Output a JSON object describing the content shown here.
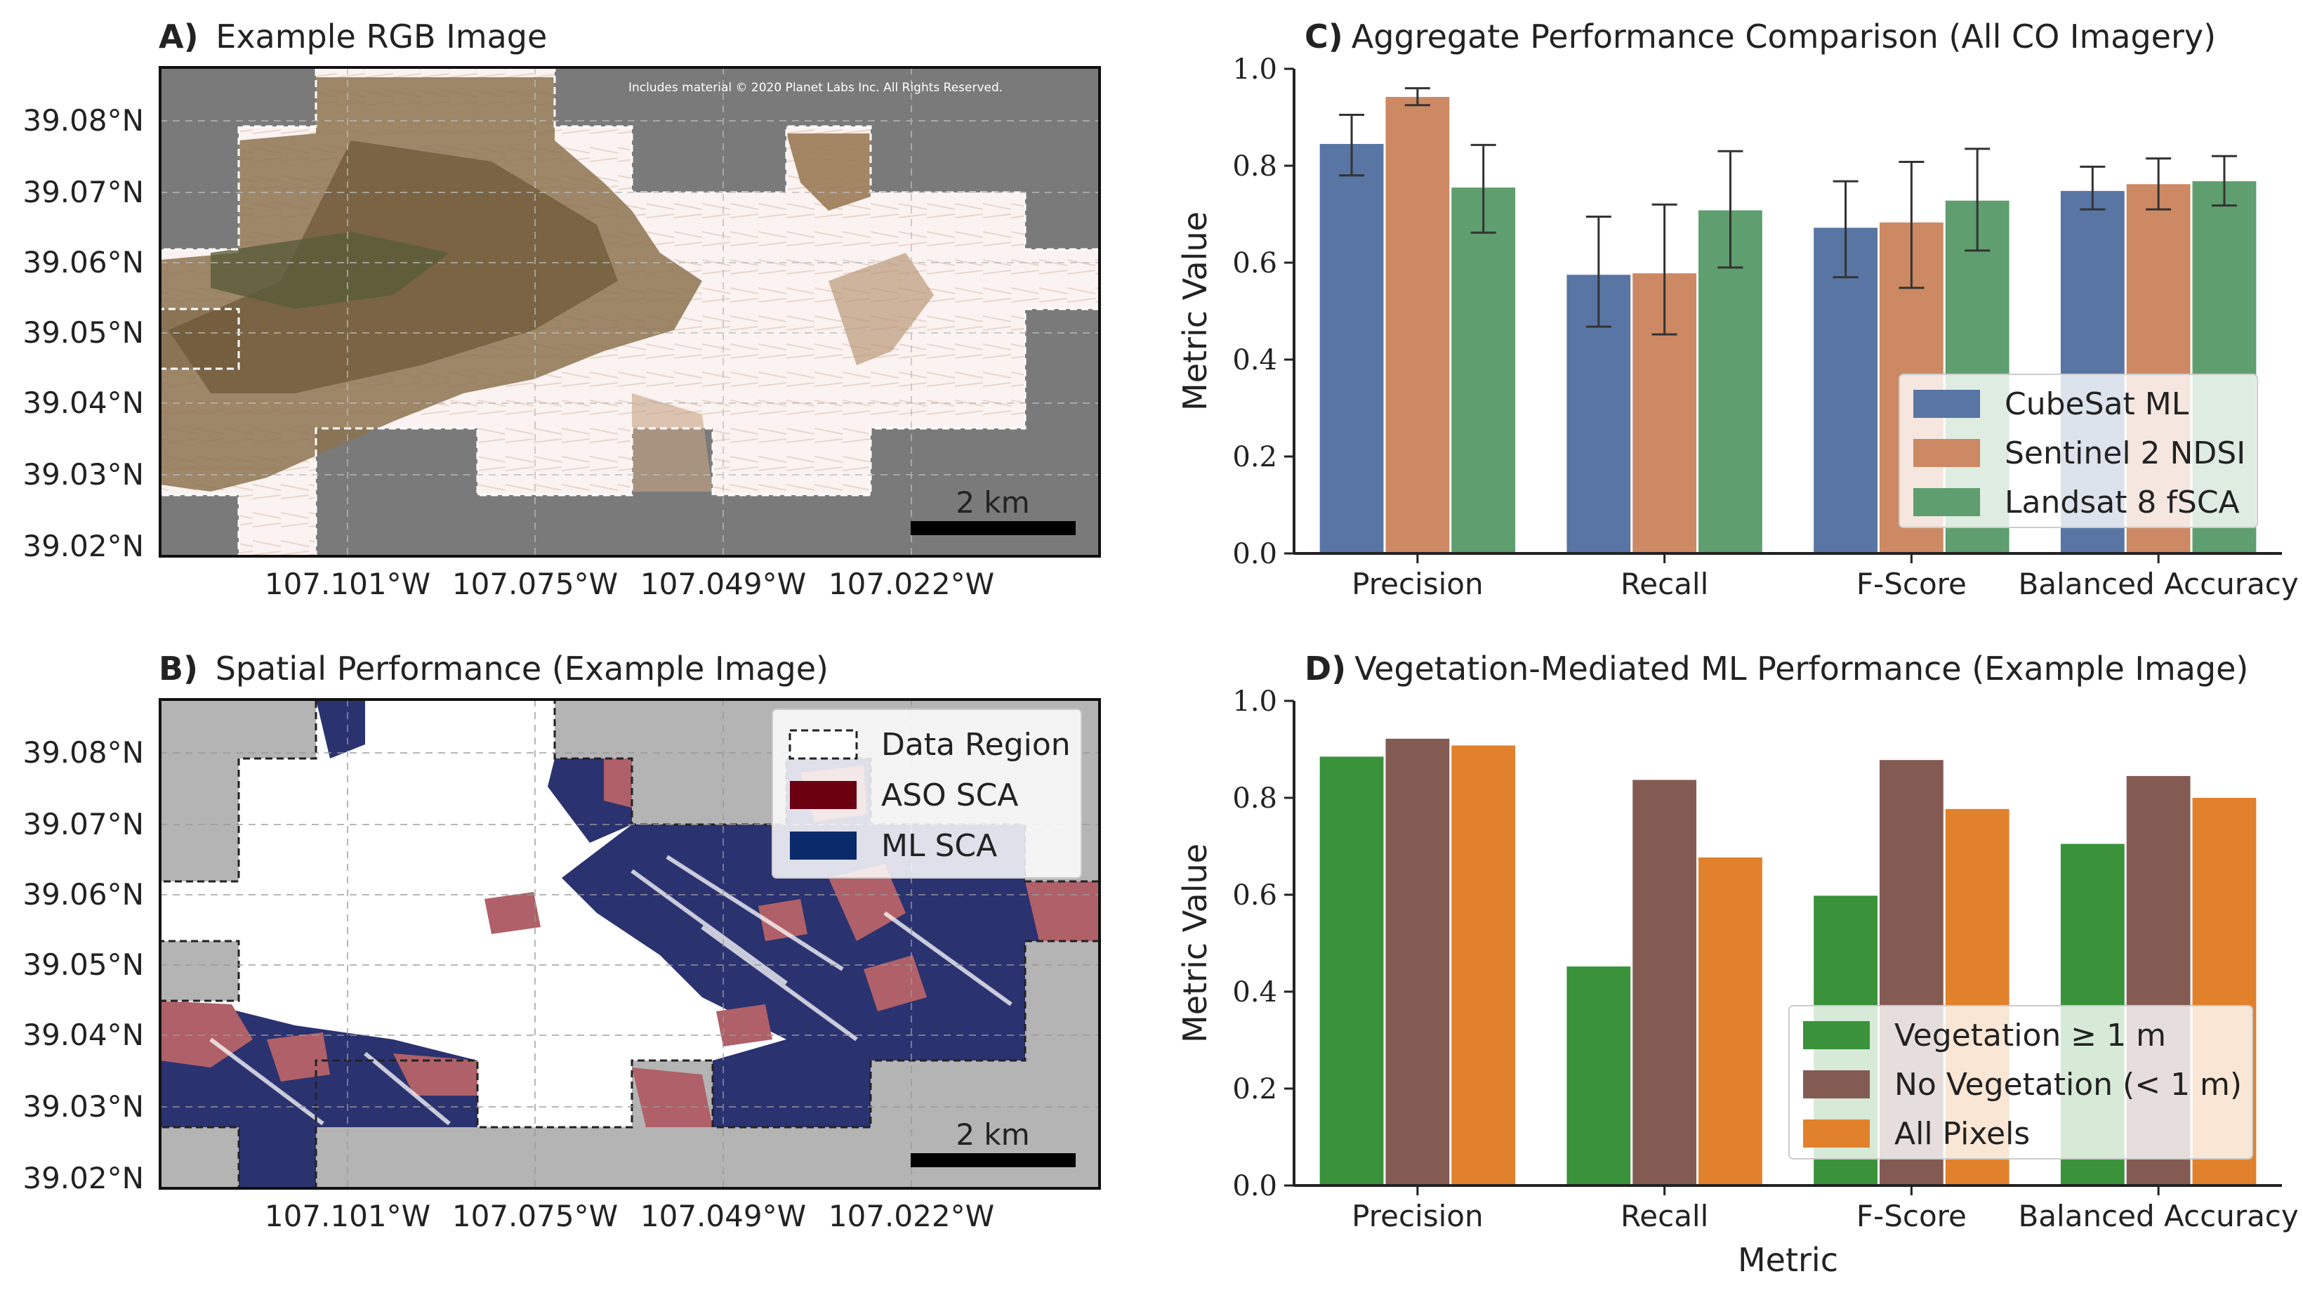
{
  "panel_a": {
    "label": "A)",
    "title": "Example RGB Image",
    "copyright": "Includes material © 2020 Planet Labs Inc. All Rights Reserved.",
    "scalebar": "2 km",
    "lat_ticks": [
      "39.08°N",
      "39.07°N",
      "39.06°N",
      "39.05°N",
      "39.04°N",
      "39.03°N",
      "39.02°N"
    ],
    "lon_ticks": [
      "107.101°W",
      "107.075°W",
      "107.049°W",
      "107.022°W"
    ]
  },
  "panel_b": {
    "label": "B)",
    "title": "Spatial Performance (Example Image)",
    "scalebar": "2 km",
    "legend": [
      "Data Region",
      "ASO SCA",
      "ML SCA"
    ],
    "colors": {
      "aso": "#6b0010",
      "ml": "#0a2a6a",
      "aso_map": "#b06068",
      "ml_map": "#2b3270",
      "nodata": "#b4b4b4"
    },
    "lat_ticks": [
      "39.08°N",
      "39.07°N",
      "39.06°N",
      "39.05°N",
      "39.04°N",
      "39.03°N",
      "39.02°N"
    ],
    "lon_ticks": [
      "107.101°W",
      "107.075°W",
      "107.049°W",
      "107.022°W"
    ]
  },
  "chart_data": [
    {
      "id": "C",
      "type": "bar",
      "label": "C)",
      "title": "Aggregate Performance Comparison (All CO Imagery)",
      "xlabel": "",
      "ylabel": "Metric Value",
      "ylim": [
        0,
        1.0
      ],
      "yticks": [
        "0.0",
        "0.2",
        "0.4",
        "0.6",
        "0.8",
        "1.0"
      ],
      "categories": [
        "Precision",
        "Recall",
        "F-Score",
        "Balanced Accuracy"
      ],
      "legend_position": "lower-right",
      "series": [
        {
          "name": "CubeSat ML",
          "color": "#5875a4",
          "values": [
            0.845,
            0.575,
            0.672,
            0.748
          ],
          "err_low": [
            0.78,
            0.468,
            0.57,
            0.71
          ],
          "err_high": [
            0.905,
            0.695,
            0.768,
            0.798
          ]
        },
        {
          "name": "Sentinel 2 NDSI",
          "color": "#cc8963",
          "values": [
            0.942,
            0.578,
            0.683,
            0.762
          ],
          "err_low": [
            0.925,
            0.452,
            0.548,
            0.71
          ],
          "err_high": [
            0.96,
            0.72,
            0.808,
            0.815
          ]
        },
        {
          "name": "Landsat 8 fSCA",
          "color": "#5f9e6e",
          "values": [
            0.755,
            0.708,
            0.728,
            0.768
          ],
          "err_low": [
            0.662,
            0.59,
            0.625,
            0.718
          ],
          "err_high": [
            0.843,
            0.83,
            0.835,
            0.82
          ]
        }
      ]
    },
    {
      "id": "D",
      "type": "bar",
      "label": "D)",
      "title": "Vegetation-Mediated ML Performance (Example Image)",
      "xlabel": "Metric",
      "ylabel": "Metric Value",
      "ylim": [
        0,
        1.0
      ],
      "yticks": [
        "0.0",
        "0.2",
        "0.4",
        "0.6",
        "0.8",
        "1.0"
      ],
      "categories": [
        "Precision",
        "Recall",
        "F-Score",
        "Balanced Accuracy"
      ],
      "legend_position": "lower-right",
      "series": [
        {
          "name": "Vegetation ≥ 1 m",
          "color": "#3a923a",
          "values": [
            0.885,
            0.452,
            0.598,
            0.705
          ]
        },
        {
          "name": "No Vegetation (< 1 m)",
          "color": "#845b53",
          "values": [
            0.922,
            0.837,
            0.878,
            0.845
          ]
        },
        {
          "name": "All Pixels",
          "color": "#e1812c",
          "values": [
            0.908,
            0.677,
            0.777,
            0.8
          ]
        }
      ]
    }
  ]
}
